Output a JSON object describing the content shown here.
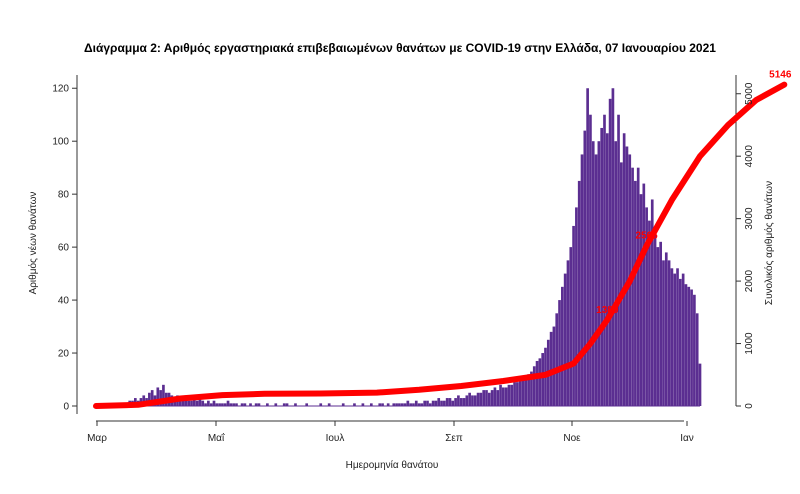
{
  "chart_data": {
    "type": "bar",
    "title": "Διάγραμμα 2: Αριθμός εργαστηριακά επιβεβαιωμένων θανάτων με COVID-19 στην Ελλάδα, 07 Ιανουαρίου 2021",
    "xlabel": "Ημερομηνία θανάτου",
    "ylabel_left": "Αριθμός νέων θανάτων",
    "ylabel_right": "Συνολικός αριθμός θανάτων",
    "x_ticks": [
      "Μαρ",
      "Μαΐ",
      "Ιουλ",
      "Σεπ",
      "Νοε",
      "Ιαν"
    ],
    "y_left_ticks": [
      "0",
      "20",
      "40",
      "60",
      "80",
      "100",
      "120"
    ],
    "y_right_ticks": [
      "0",
      "1000",
      "2000",
      "3000",
      "4000",
      "5000"
    ],
    "ylim_left": [
      0,
      125
    ],
    "ylim_right": [
      0,
      5300
    ],
    "grid": false,
    "series": [
      {
        "kind": "bar",
        "axis": "left",
        "color": "#5b2e91",
        "values": [
          0,
          0,
          0,
          0,
          0,
          0,
          0,
          1,
          0,
          1,
          1,
          0,
          2,
          2,
          3,
          2,
          3,
          4,
          3,
          5,
          6,
          4,
          7,
          6,
          8,
          5,
          5,
          4,
          3,
          4,
          3,
          3,
          4,
          2,
          2,
          3,
          2,
          3,
          2,
          1,
          2,
          1,
          2,
          1,
          1,
          1,
          1,
          2,
          1,
          1,
          1,
          0,
          1,
          1,
          0,
          1,
          0,
          1,
          1,
          0,
          0,
          1,
          0,
          0,
          1,
          0,
          0,
          1,
          1,
          0,
          0,
          1,
          0,
          0,
          0,
          1,
          0,
          0,
          0,
          0,
          1,
          0,
          0,
          1,
          0,
          0,
          0,
          0,
          1,
          0,
          0,
          0,
          1,
          0,
          0,
          1,
          0,
          0,
          1,
          0,
          0,
          1,
          1,
          0,
          1,
          0,
          1,
          1,
          1,
          1,
          1,
          2,
          1,
          1,
          2,
          1,
          1,
          2,
          2,
          1,
          2,
          2,
          3,
          2,
          2,
          3,
          3,
          2,
          3,
          4,
          3,
          3,
          4,
          5,
          4,
          4,
          5,
          5,
          6,
          6,
          5,
          6,
          7,
          6,
          8,
          7,
          7,
          8,
          8,
          9,
          9,
          10,
          10,
          11,
          12,
          13,
          15,
          17,
          18,
          20,
          22,
          25,
          28,
          30,
          35,
          40,
          45,
          50,
          55,
          60,
          68,
          75,
          85,
          95,
          104,
          120,
          110,
          100,
          95,
          100,
          105,
          110,
          103,
          116,
          120,
          100,
          110,
          92,
          103,
          98,
          95,
          90,
          85,
          90,
          80,
          84,
          75,
          70,
          78,
          65,
          60,
          62,
          55,
          58,
          55,
          52,
          50,
          52,
          48,
          50,
          46,
          45,
          44,
          42,
          35,
          16
        ]
      },
      {
        "kind": "line",
        "axis": "right",
        "name": "",
        "color": "#ff0000",
        "points": [
          [
            0,
            0
          ],
          [
            15,
            20
          ],
          [
            30,
            120
          ],
          [
            45,
            175
          ],
          [
            60,
            195
          ],
          [
            80,
            200
          ],
          [
            100,
            215
          ],
          [
            115,
            260
          ],
          [
            130,
            320
          ],
          [
            145,
            400
          ],
          [
            160,
            500
          ],
          [
            170,
            680
          ],
          [
            176,
            1000
          ],
          [
            182,
            1380
          ],
          [
            190,
            2000
          ],
          [
            196,
            2566
          ],
          [
            205,
            3300
          ],
          [
            215,
            4000
          ],
          [
            225,
            4500
          ],
          [
            235,
            4900
          ],
          [
            245,
            5146
          ]
        ]
      }
    ],
    "annotations": [
      {
        "text": "5146",
        "x": 245,
        "axis": "right",
        "y": 5146
      },
      {
        "text": "2566",
        "x": 196,
        "axis": "right",
        "y": 2566
      },
      {
        "text": "1380",
        "x": 182,
        "axis": "right",
        "y": 1380
      }
    ]
  }
}
